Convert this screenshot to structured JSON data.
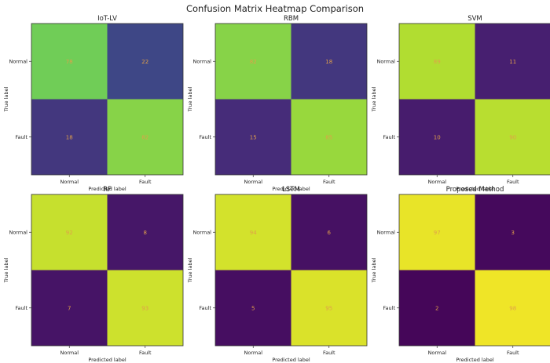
{
  "chart_data": {
    "type": "heatmap",
    "title": "Confusion Matrix Heatmap Comparison",
    "xlabel": "Predicted label",
    "ylabel": "True label",
    "labels": [
      "Normal",
      "Fault"
    ],
    "colormap": "viridis",
    "vmin": 0,
    "vmax": 100,
    "text_color": "#e0a04a",
    "panels": [
      {
        "title": "IoT-LV",
        "matrix": [
          [
            78,
            22
          ],
          [
            18,
            82
          ]
        ]
      },
      {
        "title": "RBM",
        "matrix": [
          [
            82,
            18
          ],
          [
            15,
            85
          ]
        ]
      },
      {
        "title": "SVM",
        "matrix": [
          [
            89,
            11
          ],
          [
            10,
            90
          ]
        ]
      },
      {
        "title": "RF",
        "matrix": [
          [
            92,
            8
          ],
          [
            7,
            93
          ]
        ]
      },
      {
        "title": "LSTM",
        "matrix": [
          [
            94,
            6
          ],
          [
            5,
            95
          ]
        ]
      },
      {
        "title": "Proposed Method",
        "matrix": [
          [
            97,
            3
          ],
          [
            2,
            98
          ]
        ]
      }
    ]
  }
}
